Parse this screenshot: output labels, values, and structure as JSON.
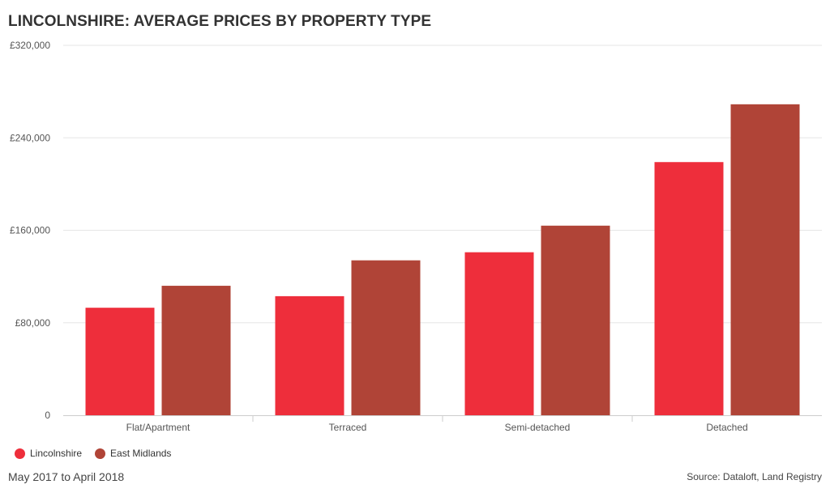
{
  "title": "LINCOLNSHIRE: AVERAGE PRICES BY PROPERTY TYPE",
  "footer": {
    "date_range": "May 2017 to April 2018",
    "source": "Source: Dataloft, Land Registry"
  },
  "colors": {
    "lincolnshire": "#ee2e3b",
    "east_midlands": "#b04437",
    "grid": "#e6e6e6",
    "axis": "#cccccc",
    "text": "#333333"
  },
  "chart_data": {
    "type": "bar",
    "title": "LINCOLNSHIRE: AVERAGE PRICES BY PROPERTY TYPE",
    "xlabel": "",
    "ylabel": "",
    "categories": [
      "Flat/Apartment",
      "Terraced",
      "Semi-detached",
      "Detached"
    ],
    "series": [
      {
        "name": "Lincolnshire",
        "color": "#ee2e3b",
        "values": [
          93000,
          103000,
          141000,
          219000
        ]
      },
      {
        "name": "East Midlands",
        "color": "#b04437",
        "values": [
          112000,
          134000,
          164000,
          269000
        ]
      }
    ],
    "ylim": [
      0,
      320000
    ],
    "yticks": [
      0,
      80000,
      160000,
      240000,
      320000
    ],
    "ytick_labels": [
      "0",
      "£80,000",
      "£160,000",
      "£240,000",
      "£320,000"
    ],
    "grid": true,
    "legend_position": "bottom-left"
  }
}
